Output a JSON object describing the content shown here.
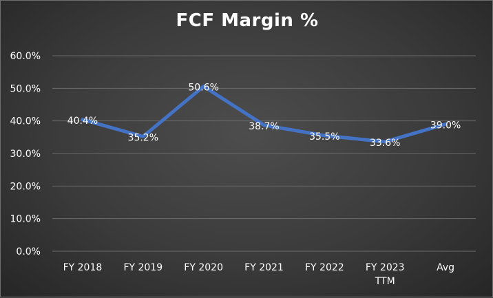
{
  "chart_data": {
    "type": "line",
    "title": "FCF Margin %",
    "categories": [
      [
        "FY 2018"
      ],
      [
        "FY 2019"
      ],
      [
        "FY 2020"
      ],
      [
        "FY 2021"
      ],
      [
        "FY 2022"
      ],
      [
        "FY 2023",
        "TTM"
      ],
      [
        "Avg"
      ]
    ],
    "series": [
      {
        "values": [
          40.4,
          35.2,
          50.6,
          38.7,
          35.5,
          33.6,
          39.0
        ],
        "labels": [
          "40.4%",
          "35.2%",
          "50.6%",
          "38.7%",
          "35.5%",
          "33.6%",
          "39.0%"
        ],
        "color": "#4472c4"
      }
    ],
    "yticks": [
      "0.0%",
      "10.0%",
      "20.0%",
      "30.0%",
      "40.0%",
      "50.0%",
      "60.0%"
    ],
    "ylim": [
      0,
      60
    ],
    "xlabel": "",
    "ylabel": "",
    "grid": true,
    "legend": "none"
  }
}
